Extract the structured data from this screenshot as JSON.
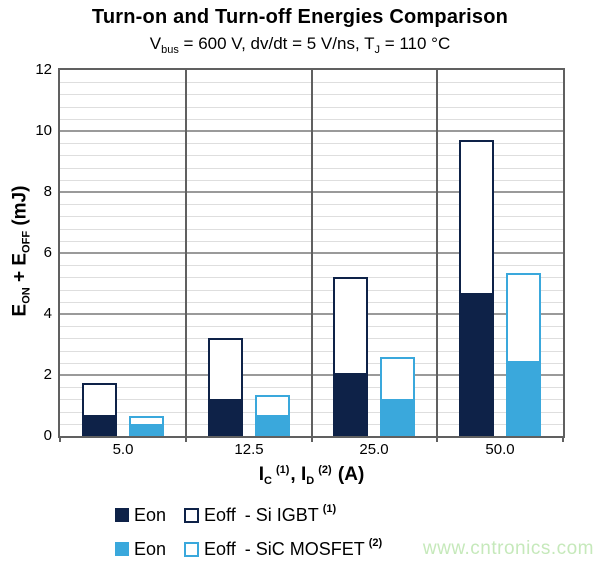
{
  "title": "Turn-on and Turn-off Energies Comparison",
  "subtitle": {
    "pre": "V",
    "sub1": "bus",
    "mid": " = 600 V, dv/dt = 5 V/ns, T",
    "sub2": "J",
    "post": " = 110 °C"
  },
  "y_axis": {
    "t1": "E",
    "s1": "ON",
    "t2": " + E",
    "s2": "OFF",
    "t3": " (mJ)"
  },
  "x_axis": {
    "t1": "I",
    "s1": "C",
    "sup1": "(1)",
    "t2": ", I",
    "s2": "D",
    "sup2": "(2)",
    "t3": " (A)"
  },
  "legend": {
    "rows": [
      {
        "eon": "Eon",
        "eoff": "Eoff",
        "device": "- Si IGBT",
        "sup": "(1)",
        "color": "#0e2248"
      },
      {
        "eon": "Eon",
        "eoff": "Eoff",
        "device": "- SiC MOSFET",
        "sup": "(2)",
        "color": "#3aa8dc"
      }
    ]
  },
  "watermark": "www.cntronics.com",
  "colors": {
    "navy": "#0e2248",
    "light_blue": "#3aa8dc",
    "grid_major": "#9a9a9a",
    "grid_minor": "#dedede",
    "axis": "#606060",
    "watermark_green": "#c6e9bb"
  },
  "chart_data": {
    "type": "bar",
    "stacked": true,
    "title": "Turn-on and Turn-off Energies Comparison",
    "subtitle": "Vbus = 600 V, dv/dt = 5 V/ns, TJ = 110 °C",
    "xlabel": "IC (1), ID (2) (A)",
    "ylabel": "EON + EOFF (mJ)",
    "categories": [
      "5.0",
      "12.5",
      "25.0",
      "50.0"
    ],
    "ylim": [
      0,
      12
    ],
    "y_major_ticks": [
      0,
      2,
      4,
      6,
      8,
      10,
      12
    ],
    "y_minor_step": 0.4,
    "grid": true,
    "legend_position": "bottom",
    "series": [
      {
        "name": "Si IGBT Eon",
        "group": "Si IGBT",
        "values": [
          0.7,
          1.2,
          2.05,
          4.7
        ]
      },
      {
        "name": "Si IGBT Eoff",
        "group": "Si IGBT",
        "values": [
          1.05,
          2.0,
          3.15,
          5.0
        ]
      },
      {
        "name": "SiC MOSFET Eon",
        "group": "SiC MOSFET",
        "values": [
          0.4,
          0.7,
          1.2,
          2.45
        ]
      },
      {
        "name": "SiC MOSFET Eoff",
        "group": "SiC MOSFET",
        "values": [
          0.25,
          0.65,
          1.4,
          2.9
        ]
      }
    ],
    "totals": {
      "si_igbt": [
        1.75,
        3.2,
        5.2,
        9.7
      ],
      "sic_mosfet": [
        0.65,
        1.35,
        2.6,
        5.35
      ]
    }
  }
}
